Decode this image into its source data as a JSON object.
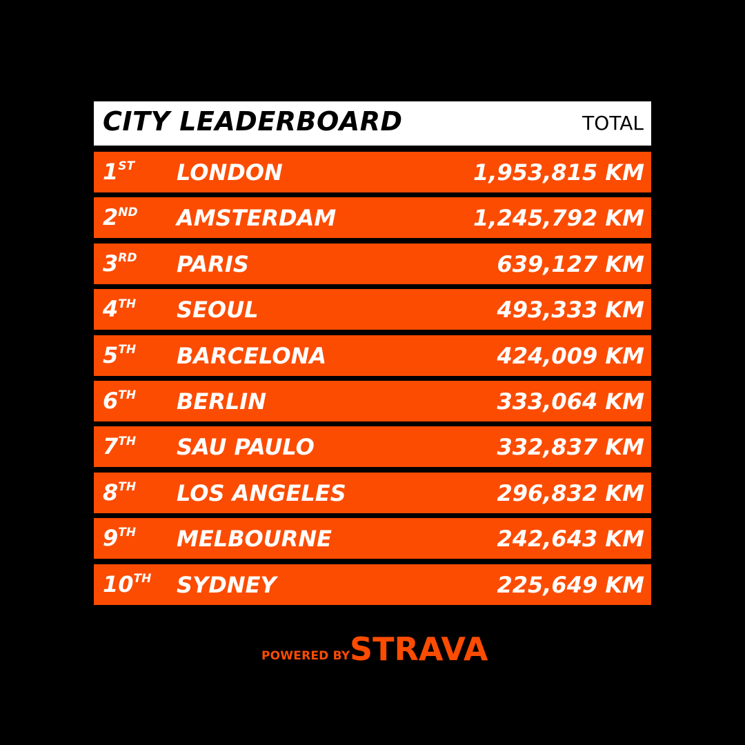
{
  "header": {
    "title": "CITY LEADERBOARD",
    "total_label": "TOTAL"
  },
  "rows": [
    {
      "rank": "1",
      "suffix": "ST",
      "city": "LONDON",
      "distance": "1,953,815 KM"
    },
    {
      "rank": "2",
      "suffix": "ND",
      "city": "AMSTERDAM",
      "distance": "1,245,792 KM"
    },
    {
      "rank": "3",
      "suffix": "RD",
      "city": "PARIS",
      "distance": "639,127 KM"
    },
    {
      "rank": "4",
      "suffix": "TH",
      "city": "SEOUL",
      "distance": "493,333 KM"
    },
    {
      "rank": "5",
      "suffix": "TH",
      "city": "BARCELONA",
      "distance": "424,009 KM"
    },
    {
      "rank": "6",
      "suffix": "TH",
      "city": "BERLIN",
      "distance": "333,064 KM"
    },
    {
      "rank": "7",
      "suffix": "TH",
      "city": "SAU PAULO",
      "distance": "332,837 KM"
    },
    {
      "rank": "8",
      "suffix": "TH",
      "city": "LOS ANGELES",
      "distance": "296,832 KM"
    },
    {
      "rank": "9",
      "suffix": "TH",
      "city": "MELBOURNE",
      "distance": "242,643 KM"
    },
    {
      "rank": "10",
      "suffix": "TH",
      "city": "SYDNEY",
      "distance": "225,649 KM"
    }
  ],
  "footer": {
    "powered_by": "POWERED BY",
    "brand": "STRAVA"
  },
  "colors": {
    "background": "#000000",
    "accent": "#fc4c02",
    "header_bg": "#ffffff"
  }
}
